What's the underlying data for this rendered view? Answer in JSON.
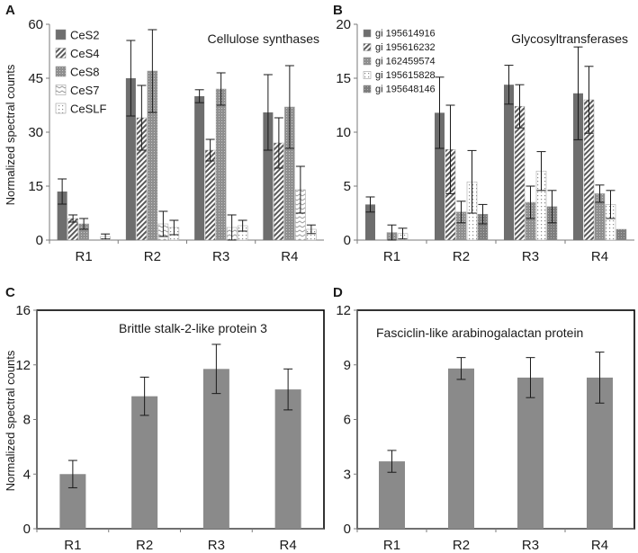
{
  "y_axis_label": "Normalized spectral counts",
  "colors": {
    "bar_dark": "#6e6e6e",
    "bar_mid": "#8a8a8a",
    "bar_light": "#bdbdbd",
    "axis": "#7a7a7a",
    "error": "#1a1a1a"
  },
  "chart_data": [
    {
      "panel": "A",
      "type": "bar",
      "title": "Cellulose synthases",
      "ylabel": "Normalized spectral counts",
      "xlabel": "",
      "ylim": [
        0,
        60
      ],
      "yticks": [
        0,
        15,
        30,
        45,
        60
      ],
      "categories": [
        "R1",
        "R2",
        "R3",
        "R4"
      ],
      "legend": "top-left",
      "series": [
        {
          "name": "CeS2",
          "pattern": "solid-dark",
          "values": [
            13.5,
            45,
            40,
            35.5
          ],
          "errors": [
            3.5,
            10.5,
            1.8,
            10.5
          ]
        },
        {
          "name": "CeS4",
          "pattern": "diagonal-hatch",
          "values": [
            6,
            34,
            25,
            27
          ],
          "errors": [
            1,
            9,
            3,
            7
          ]
        },
        {
          "name": "CeS8",
          "pattern": "fine-dots",
          "values": [
            4.5,
            47,
            42,
            37
          ],
          "errors": [
            1.5,
            11.5,
            4.5,
            11.5
          ]
        },
        {
          "name": "CeS7",
          "pattern": "waves",
          "values": [
            0,
            4.5,
            3.5,
            14
          ],
          "errors": [
            0,
            3.5,
            3.5,
            6.5
          ]
        },
        {
          "name": "CeSLF",
          "pattern": "dotted-light",
          "values": [
            1,
            3.5,
            4,
            3
          ],
          "errors": [
            0.7,
            2,
            1.5,
            1.2
          ]
        }
      ]
    },
    {
      "panel": "B",
      "type": "bar",
      "title": "Glycosyltransferases",
      "ylabel": "",
      "xlabel": "",
      "ylim": [
        0,
        20
      ],
      "yticks": [
        0,
        5,
        10,
        15,
        20
      ],
      "categories": [
        "R1",
        "R2",
        "R3",
        "R4"
      ],
      "legend": "top-left",
      "series": [
        {
          "name": "gi 195614916",
          "pattern": "solid-dark",
          "values": [
            3.3,
            11.8,
            14.4,
            13.6
          ],
          "errors": [
            0.7,
            3.3,
            1.8,
            4.3
          ]
        },
        {
          "name": "gi 195616232",
          "pattern": "diagonal-hatch",
          "values": [
            0,
            8.4,
            12.4,
            13
          ],
          "errors": [
            0,
            4.1,
            2,
            3.1
          ]
        },
        {
          "name": "gi 162459574",
          "pattern": "fine-dots",
          "values": [
            0.7,
            2.6,
            3.5,
            4.3
          ],
          "errors": [
            0.7,
            1,
            1.5,
            0.8
          ]
        },
        {
          "name": "gi 195615828",
          "pattern": "dotted-light",
          "values": [
            0.6,
            5.4,
            6.4,
            3.3
          ],
          "errors": [
            0.5,
            2.9,
            1.8,
            1.3
          ]
        },
        {
          "name": "gi 195648146",
          "pattern": "dense-dots",
          "values": [
            0,
            2.4,
            3.1,
            1
          ],
          "errors": [
            0,
            0.9,
            1.5,
            0
          ]
        }
      ]
    },
    {
      "panel": "C",
      "type": "bar",
      "title": "Brittle stalk-2-like protein 3",
      "ylabel": "Normalized spectral counts",
      "xlabel": "",
      "ylim": [
        0,
        16
      ],
      "yticks": [
        0,
        4,
        8,
        12,
        16
      ],
      "categories": [
        "R1",
        "R2",
        "R3",
        "R4"
      ],
      "series": [
        {
          "name": "Brittle stalk-2-like protein 3",
          "pattern": "solid-mid",
          "values": [
            4,
            9.7,
            11.7,
            10.2
          ],
          "errors": [
            1,
            1.4,
            1.8,
            1.5
          ]
        }
      ]
    },
    {
      "panel": "D",
      "type": "bar",
      "title": "Fasciclin-like arabinogalactan protein",
      "ylabel": "",
      "xlabel": "",
      "ylim": [
        0,
        12
      ],
      "yticks": [
        0,
        3,
        6,
        9,
        12
      ],
      "categories": [
        "R1",
        "R2",
        "R3",
        "R4"
      ],
      "series": [
        {
          "name": "Fasciclin-like arabinogalactan protein",
          "pattern": "solid-mid",
          "values": [
            3.7,
            8.8,
            8.3,
            8.3
          ],
          "errors": [
            0.6,
            0.6,
            1.1,
            1.4
          ]
        }
      ]
    }
  ]
}
